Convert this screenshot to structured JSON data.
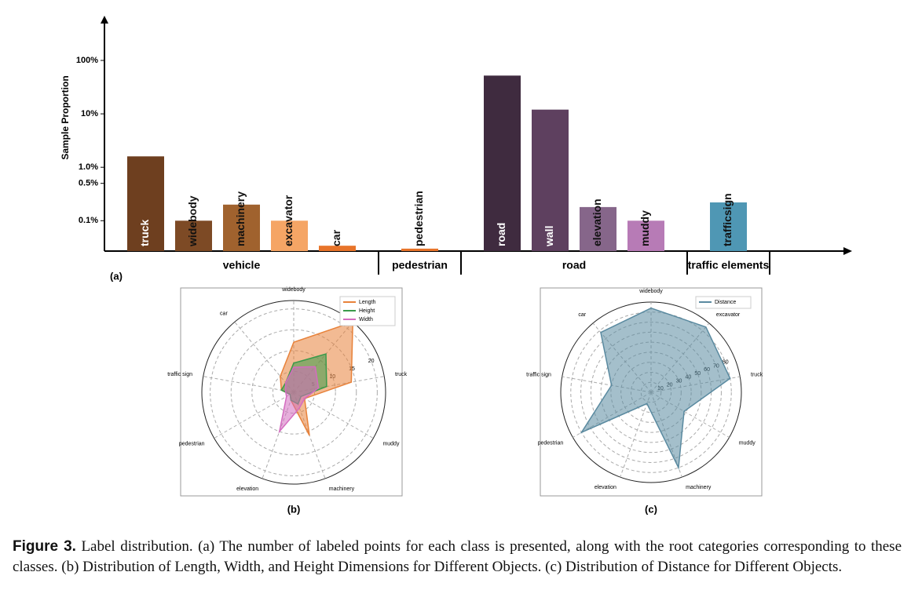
{
  "chart_data": [
    {
      "type": "bar",
      "label": "(a)",
      "y_label": "Sample Proportion",
      "log": true,
      "categories": [
        "truck",
        "widebody",
        "machinery",
        "excavator",
        "car",
        "pedestrian",
        "road",
        "wall",
        "elevation",
        "muddy",
        "trafficsign"
      ],
      "values": [
        1.6,
        0.1,
        0.2,
        0.1,
        0.034,
        0.03,
        52,
        12,
        0.18,
        0.1,
        0.22
      ],
      "colors": [
        "#6e3f1f",
        "#7d4a25",
        "#a0622e",
        "#f5a565",
        "#e8742a",
        "#e8742a",
        "#3f2b3f",
        "#5e405f",
        "#86668a",
        "#b77bb6",
        "#4f97b4"
      ],
      "groups": [
        {
          "name": "vehicle",
          "count": 5
        },
        {
          "name": "pedestrian",
          "count": 1
        },
        {
          "name": "road",
          "count": 4
        },
        {
          "name": "traffic elements",
          "count": 1
        }
      ],
      "ylim": [
        0.027,
        100
      ],
      "yticks": [
        {
          "value": 0.1,
          "label": "0.1%"
        },
        {
          "value": 0.5,
          "label": "0.5%"
        },
        {
          "value": 1,
          "label": "1.0%"
        },
        {
          "value": 10,
          "label": "10%"
        },
        {
          "value": 100,
          "label": "100%"
        }
      ]
    },
    {
      "type": "radar",
      "label": "(b)",
      "categories": [
        "widebody",
        "excavator",
        "truck",
        "muddy",
        "machinery",
        "elevation",
        "pedestrian",
        "traffic sign",
        "car"
      ],
      "series": [
        {
          "name": "Length",
          "color": "#e8823a",
          "values": [
            12,
            22,
            14,
            3,
            11,
            2,
            1,
            3,
            5
          ]
        },
        {
          "name": "Height",
          "color": "#3a9a4a",
          "values": [
            7,
            12,
            8,
            2,
            3,
            2,
            1,
            3,
            3
          ]
        },
        {
          "name": "Width",
          "color": "#d46cc0",
          "values": [
            6,
            8,
            6,
            3,
            4,
            10,
            2,
            2,
            3
          ]
        }
      ],
      "rlim": [
        0,
        22
      ],
      "rticks": [
        5,
        10,
        15,
        20
      ]
    },
    {
      "type": "radar",
      "label": "(c)",
      "categories": [
        "widebody",
        "excavator",
        "truck",
        "muddy",
        "machinery",
        "elevation",
        "pedestrian",
        "traffic sign",
        "car"
      ],
      "series": [
        {
          "name": "Distance",
          "color": "#5a8aa0",
          "values": [
            84,
            85,
            80,
            38,
            80,
            12,
            80,
            40,
            78
          ]
        }
      ],
      "rlim": [
        0,
        90
      ],
      "rticks": [
        10,
        20,
        30,
        40,
        50,
        60,
        70,
        80
      ]
    }
  ],
  "caption": {
    "label": "Figure 3.",
    "text": "Label distribution. (a) The number of labeled points for each class is presented, along with the root categories corresponding to these classes. (b) Distribution of Length, Width, and Height Dimensions for Different Objects. (c) Distribution of Distance for Different Objects."
  }
}
